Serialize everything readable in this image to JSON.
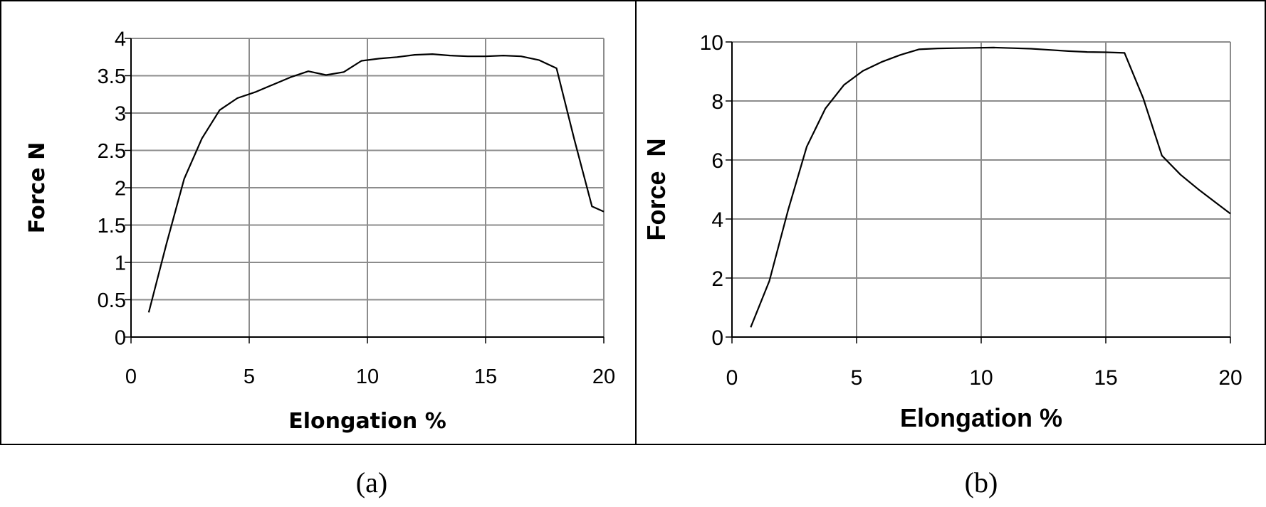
{
  "captions": [
    "(a)",
    "(b)"
  ],
  "chart_data": [
    {
      "type": "line",
      "title": "",
      "xlabel": "Elongation %",
      "ylabel": "Force N",
      "xlim": [
        0,
        20
      ],
      "ylim": [
        0,
        4
      ],
      "xticks": [
        0,
        5,
        10,
        15,
        20
      ],
      "yticks": [
        0,
        0.5,
        1,
        1.5,
        2,
        2.5,
        3,
        3.5,
        4
      ],
      "ytick_labels": [
        "0",
        "0.5",
        "1",
        "1.5",
        "2",
        "2.5",
        "3",
        "3.5",
        "4"
      ],
      "grid": true,
      "series": [
        {
          "x": [
            0.75,
            1.5,
            2.25,
            3.0,
            3.75,
            4.5,
            5.25,
            6.0,
            6.75,
            7.5,
            8.25,
            9.0,
            9.75,
            10.5,
            11.25,
            12.0,
            12.75,
            13.5,
            14.25,
            15.0,
            15.75,
            16.5,
            17.25,
            18.0,
            18.75,
            19.5,
            20.0
          ],
          "y": [
            0.33,
            1.25,
            2.12,
            2.66,
            3.04,
            3.2,
            3.28,
            3.38,
            3.48,
            3.56,
            3.51,
            3.55,
            3.7,
            3.73,
            3.75,
            3.78,
            3.79,
            3.77,
            3.76,
            3.76,
            3.77,
            3.76,
            3.71,
            3.6,
            2.65,
            1.75,
            1.68
          ],
          "color": "#000000"
        }
      ]
    },
    {
      "type": "line",
      "title": "",
      "xlabel": "Elongation %",
      "ylabel": "Force  N",
      "xlim": [
        0,
        20
      ],
      "ylim": [
        0,
        10
      ],
      "xticks": [
        0,
        5,
        10,
        15,
        20
      ],
      "yticks": [
        0,
        2,
        4,
        6,
        8,
        10
      ],
      "ytick_labels": [
        "0",
        "2",
        "4",
        "6",
        "8",
        "10"
      ],
      "grid": true,
      "series": [
        {
          "x": [
            0.75,
            1.5,
            2.25,
            3.0,
            3.75,
            4.5,
            5.25,
            6.0,
            6.75,
            7.5,
            8.25,
            9.0,
            9.75,
            10.5,
            11.25,
            12.0,
            12.75,
            13.5,
            14.25,
            15.0,
            15.75,
            16.5,
            17.25,
            18.0,
            18.75,
            19.5,
            20.0
          ],
          "y": [
            0.33,
            1.9,
            4.3,
            6.45,
            7.75,
            8.55,
            9.02,
            9.32,
            9.56,
            9.75,
            9.78,
            9.79,
            9.8,
            9.81,
            9.79,
            9.77,
            9.73,
            9.69,
            9.66,
            9.65,
            9.63,
            8.1,
            6.15,
            5.5,
            4.98,
            4.5,
            4.18
          ],
          "color": "#000000"
        }
      ]
    }
  ]
}
